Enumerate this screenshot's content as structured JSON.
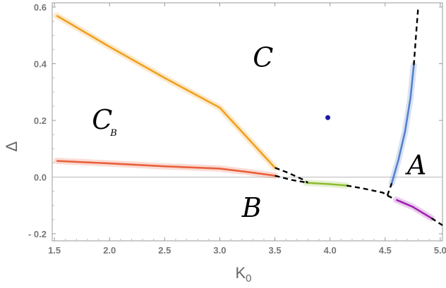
{
  "chart_data": {
    "type": "line",
    "xlabel": "K",
    "xlabel_sub": "0",
    "ylabel": "Δ",
    "xlim": [
      1.48,
      5.02
    ],
    "ylim": [
      -0.225,
      0.615
    ],
    "xticks": [
      1.5,
      2.0,
      2.5,
      3.0,
      3.5,
      4.0,
      4.5,
      5.0
    ],
    "xtick_labels": [
      "1.5",
      "2.0",
      "2.5",
      "3.0",
      "3.5",
      "4.0",
      "4.5",
      "5.0"
    ],
    "yticks": [
      -0.2,
      0.0,
      0.2,
      0.4,
      0.6
    ],
    "ytick_labels": [
      "- 0.2",
      "0.0",
      "0.2",
      "0.4",
      "0.6"
    ],
    "grid": false,
    "reference_line": {
      "y": 0.0,
      "color": "#bbbbbb"
    },
    "series": [
      {
        "id": "orange",
        "color": "#f0a020",
        "style": "solid",
        "band": true,
        "points": [
          [
            1.52,
            0.57
          ],
          [
            2.0,
            0.46
          ],
          [
            2.5,
            0.35
          ],
          [
            3.0,
            0.245
          ],
          [
            3.5,
            0.033
          ]
        ]
      },
      {
        "id": "red",
        "color": "#e8603c",
        "style": "solid",
        "band": true,
        "points": [
          [
            1.52,
            0.057
          ],
          [
            2.0,
            0.048
          ],
          [
            2.5,
            0.038
          ],
          [
            3.0,
            0.03
          ],
          [
            3.25,
            0.018
          ],
          [
            3.5,
            0.005
          ]
        ]
      },
      {
        "id": "green",
        "color": "#8cbb30",
        "style": "solid",
        "band": true,
        "points": [
          [
            3.78,
            -0.02
          ],
          [
            4.0,
            -0.025
          ],
          [
            4.15,
            -0.03
          ]
        ]
      },
      {
        "id": "blue",
        "color": "#5580cc",
        "style": "solid",
        "band": true,
        "points": [
          [
            4.56,
            -0.022
          ],
          [
            4.62,
            0.06
          ],
          [
            4.68,
            0.16
          ],
          [
            4.73,
            0.28
          ],
          [
            4.76,
            0.395
          ]
        ]
      },
      {
        "id": "purple",
        "color": "#a020b0",
        "style": "solid",
        "band": true,
        "points": [
          [
            4.6,
            -0.08
          ],
          [
            4.75,
            -0.105
          ],
          [
            4.92,
            -0.145
          ]
        ]
      },
      {
        "id": "dash-upper",
        "color": "#000000",
        "style": "dashed",
        "points": [
          [
            3.5,
            0.033
          ],
          [
            3.62,
            0.015
          ],
          [
            3.75,
            -0.008
          ],
          [
            3.8,
            -0.02
          ]
        ]
      },
      {
        "id": "dash-lower",
        "color": "#000000",
        "style": "dashed",
        "points": [
          [
            3.5,
            0.005
          ],
          [
            3.65,
            -0.01
          ],
          [
            3.8,
            -0.02
          ]
        ]
      },
      {
        "id": "dash-middle",
        "color": "#000000",
        "style": "dashed",
        "points": [
          [
            4.15,
            -0.03
          ],
          [
            4.3,
            -0.04
          ],
          [
            4.48,
            -0.055
          ],
          [
            4.52,
            -0.065
          ],
          [
            4.57,
            -0.075
          ]
        ]
      },
      {
        "id": "dash-right-low",
        "color": "#000000",
        "style": "dashed",
        "points": [
          [
            4.52,
            -0.065
          ],
          [
            4.56,
            -0.022
          ]
        ]
      },
      {
        "id": "dash-right-top",
        "color": "#000000",
        "style": "dashed",
        "points": [
          [
            4.76,
            0.395
          ],
          [
            4.78,
            0.5
          ],
          [
            4.8,
            0.6
          ]
        ]
      },
      {
        "id": "dash-purple-tail",
        "color": "#000000",
        "style": "dashed",
        "points": [
          [
            4.92,
            -0.145
          ],
          [
            5.02,
            -0.17
          ]
        ]
      }
    ],
    "markers": [
      {
        "x": 3.98,
        "y": 0.21,
        "color": "#1a1aa0"
      }
    ],
    "annotations": [
      {
        "text": "C",
        "sub": "",
        "x": 3.3,
        "y": 0.39
      },
      {
        "text": "C",
        "sub": "B",
        "x": 1.84,
        "y": 0.17
      },
      {
        "text": "B",
        "sub": "",
        "x": 3.2,
        "y": -0.14
      },
      {
        "text": "A",
        "sub": "",
        "x": 4.7,
        "y": 0.01
      }
    ]
  }
}
